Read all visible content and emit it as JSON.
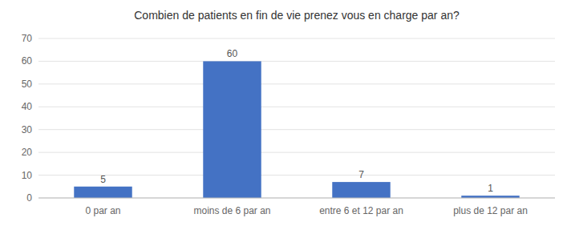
{
  "chart_data": {
    "type": "bar",
    "title": "Combien de patients en fin de vie prenez vous en charge par an?",
    "categories": [
      "0 par an",
      "moins de 6 par an",
      "entre 6 et 12 par an",
      "plus de 12 par an"
    ],
    "values": [
      5,
      60,
      7,
      1
    ],
    "color": "#4472C4",
    "ylim": [
      0,
      70
    ],
    "yticks": [
      0,
      10,
      20,
      30,
      40,
      50,
      60,
      70
    ],
    "grid": true,
    "data_labels": true
  }
}
